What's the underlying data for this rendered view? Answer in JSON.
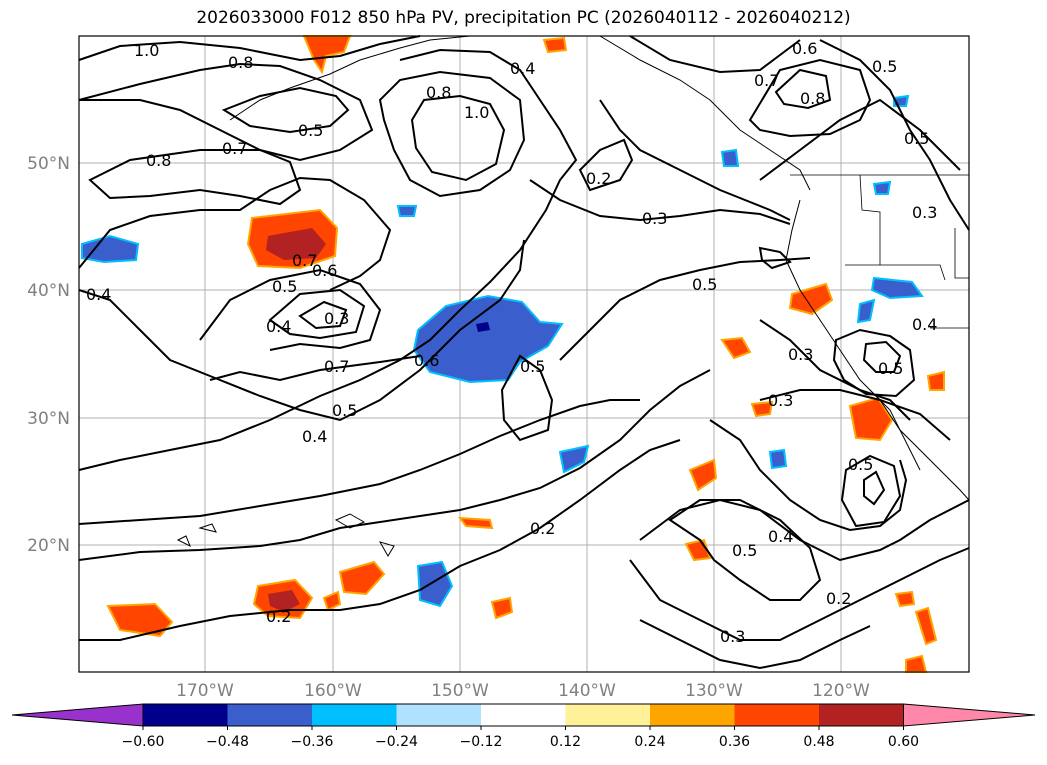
{
  "title": "2026033000 F012 850 hPa PV, precipitation PC (2026040112 - 2026040212)",
  "axes": {
    "lat_labels": [
      "50°N",
      "40°N",
      "30°N",
      "20°N"
    ],
    "lon_labels": [
      "170°W",
      "160°W",
      "150°W",
      "140°W",
      "130°W",
      "120°W"
    ]
  },
  "colorbar": {
    "colors": [
      "#9932cc",
      "#00008b",
      "#3a5fcd",
      "#00bfff",
      "#b0e2ff",
      "#ffffff",
      "#fff09a",
      "#ffa500",
      "#ff4500",
      "#b22222",
      "#ff88aa"
    ],
    "ticks": [
      "−0.60",
      "−0.48",
      "−0.36",
      "−0.24",
      "−0.12",
      "0.12",
      "0.24",
      "0.36",
      "0.48",
      "0.60"
    ]
  },
  "contour_labels": [
    "1.0",
    "0.8",
    "0.5",
    "0.7",
    "0.8",
    "0.8",
    "1.0",
    "0.4",
    "0.6",
    "0.7",
    "0.8",
    "0.5",
    "0.2",
    "0.3",
    "0.7",
    "0.6",
    "0.5",
    "0.4",
    "0.3",
    "0.4",
    "0.6",
    "0.5",
    "0.7",
    "0.5",
    "0.4",
    "0.5",
    "0.3",
    "0.3",
    "0.4",
    "0.5",
    "0.3",
    "0.5",
    "0.4",
    "0.5",
    "0.2",
    "0.2",
    "0.2",
    "0.3",
    "0.5"
  ]
}
